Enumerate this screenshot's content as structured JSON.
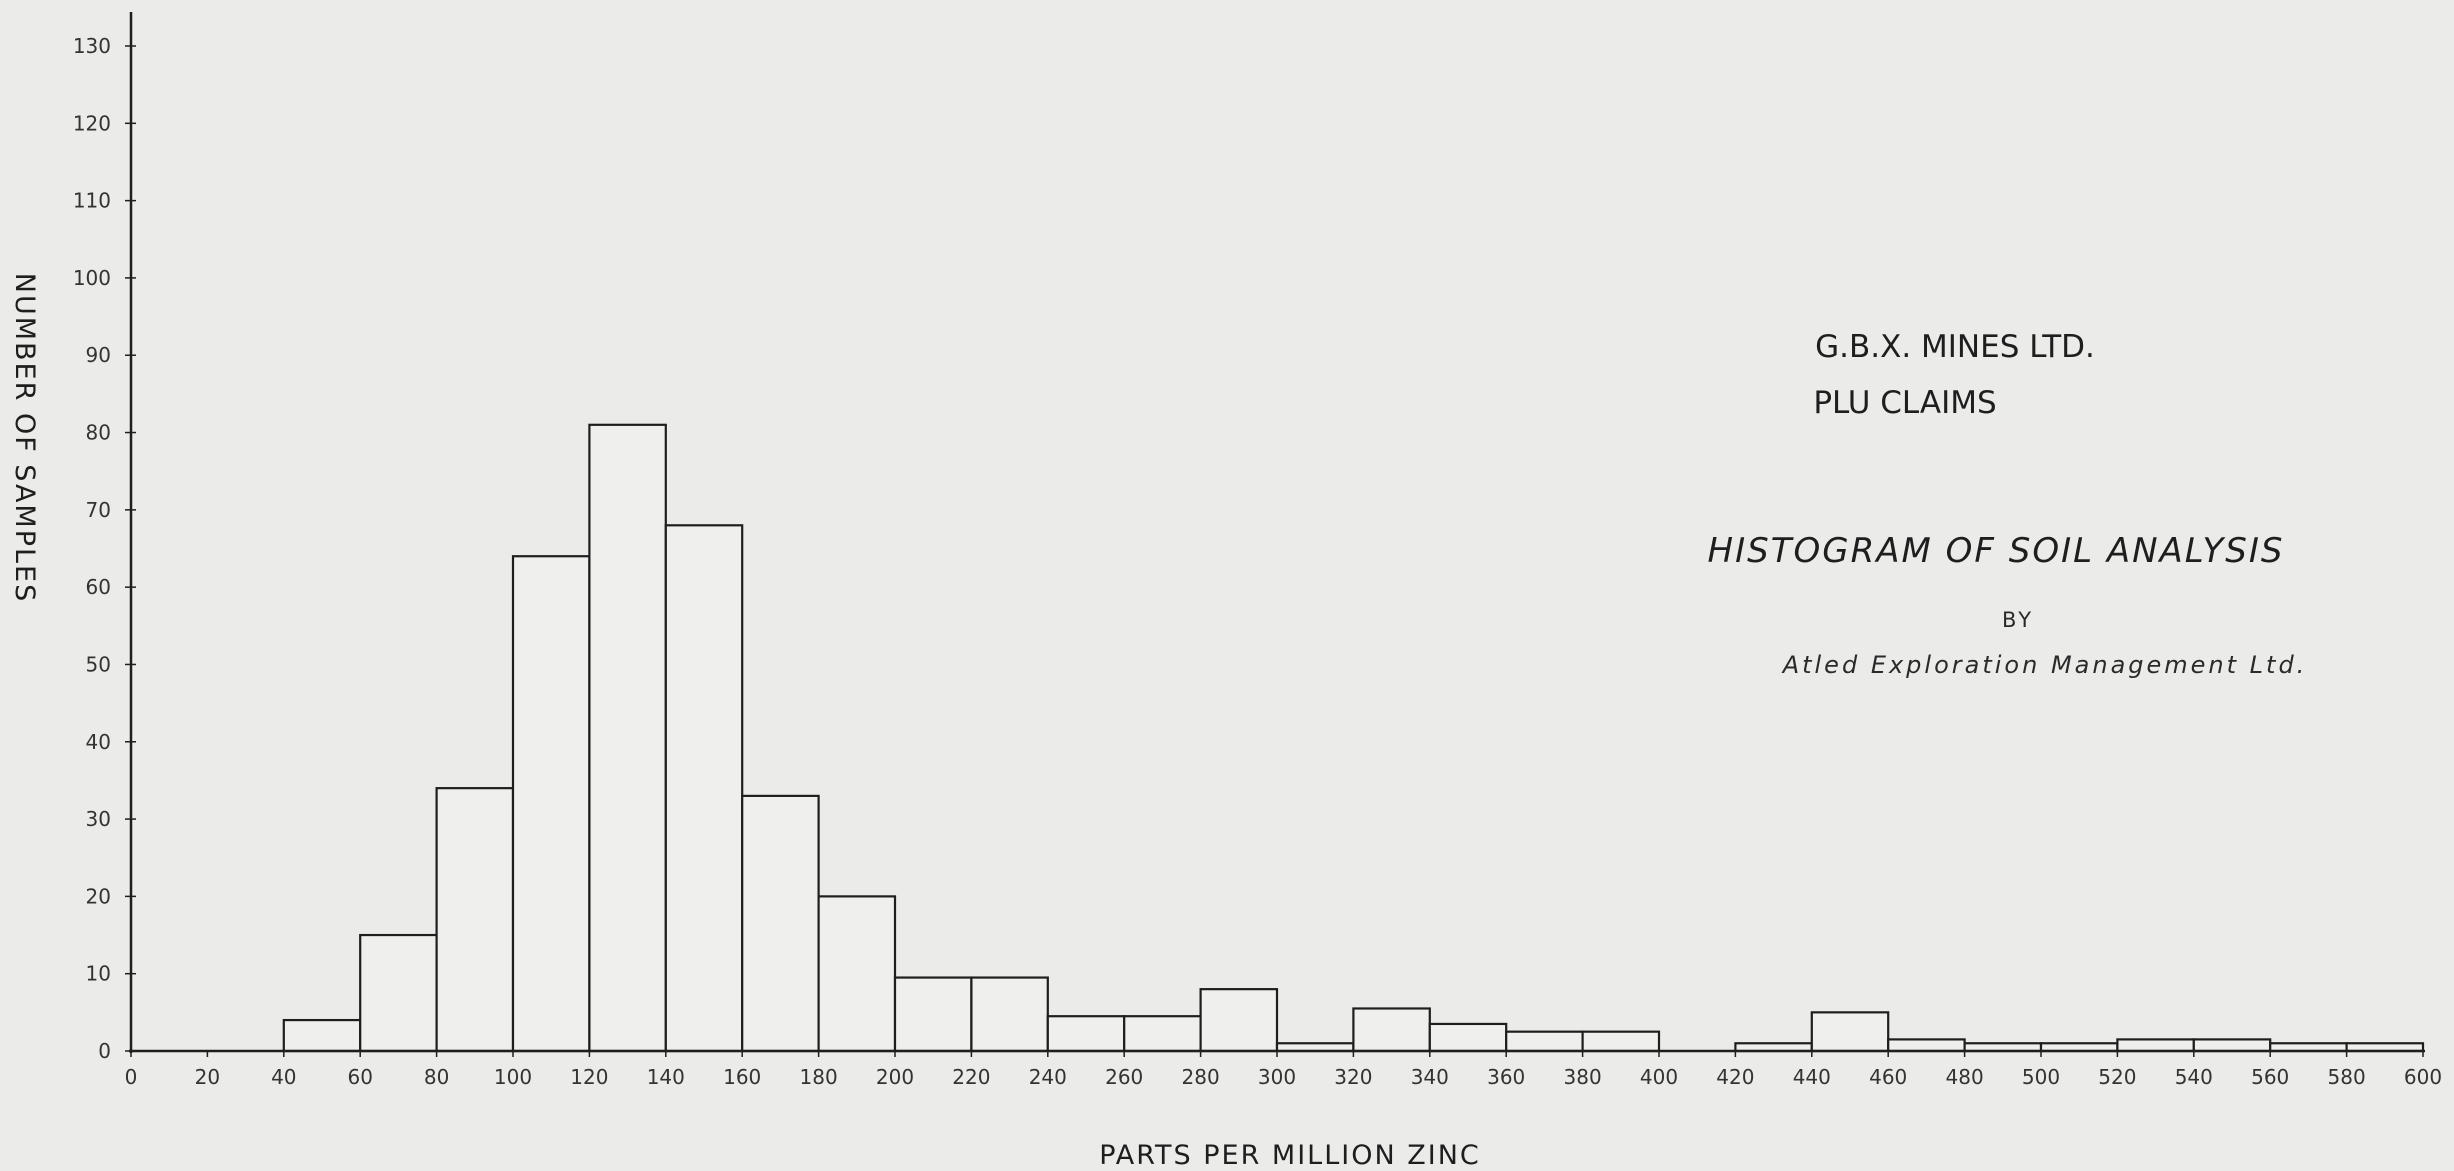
{
  "header": {
    "company": "G.B.X. MINES LTD.",
    "claims": "PLU CLAIMS",
    "histogram_title": "HISTOGRAM OF SOIL ANALYSIS",
    "by": "BY",
    "author": "Atled Exploration Management Ltd."
  },
  "chart_data": {
    "type": "bar",
    "xlabel": "PARTS PER MILLION ZINC",
    "ylabel": "NUMBER OF SAMPLES",
    "xlim": [
      0,
      600
    ],
    "ylim": [
      0,
      130
    ],
    "x_ticks": [
      0,
      20,
      40,
      60,
      80,
      100,
      120,
      140,
      160,
      180,
      200,
      220,
      240,
      260,
      280,
      300,
      320,
      340,
      360,
      380,
      400,
      420,
      440,
      460,
      480,
      500,
      520,
      540,
      560,
      580,
      600
    ],
    "x_tick_labels": [
      "0",
      "20",
      "40",
      "60",
      "80",
      "100",
      "120",
      "140",
      "160",
      "180",
      "200",
      "220",
      "240",
      "260",
      "280",
      "300",
      "320",
      "340",
      "360",
      "380",
      "400",
      "420",
      "440",
      "460",
      "480",
      "500",
      "520",
      "540",
      "560",
      "580",
      "600"
    ],
    "y_ticks": [
      0,
      10,
      20,
      30,
      40,
      50,
      60,
      70,
      80,
      90,
      100,
      110,
      120,
      130
    ],
    "y_tick_labels": [
      "0",
      "10",
      "20",
      "30",
      "40",
      "50",
      "60",
      "70",
      "80",
      "90",
      "100",
      "110",
      "120",
      "130"
    ],
    "grid": false,
    "bins": [
      {
        "from": 40,
        "to": 60,
        "count": 4
      },
      {
        "from": 60,
        "to": 80,
        "count": 15
      },
      {
        "from": 80,
        "to": 100,
        "count": 34
      },
      {
        "from": 100,
        "to": 120,
        "count": 64
      },
      {
        "from": 120,
        "to": 140,
        "count": 81
      },
      {
        "from": 140,
        "to": 160,
        "count": 68
      },
      {
        "from": 160,
        "to": 180,
        "count": 33
      },
      {
        "from": 180,
        "to": 200,
        "count": 20
      },
      {
        "from": 200,
        "to": 220,
        "count": 9.5
      },
      {
        "from": 220,
        "to": 240,
        "count": 9.5
      },
      {
        "from": 240,
        "to": 260,
        "count": 4.5
      },
      {
        "from": 260,
        "to": 280,
        "count": 4.5
      },
      {
        "from": 280,
        "to": 300,
        "count": 8
      },
      {
        "from": 300,
        "to": 320,
        "count": 1
      },
      {
        "from": 320,
        "to": 340,
        "count": 5.5
      },
      {
        "from": 340,
        "to": 360,
        "count": 3.5
      },
      {
        "from": 360,
        "to": 380,
        "count": 2.5
      },
      {
        "from": 380,
        "to": 400,
        "count": 2.5
      },
      {
        "from": 420,
        "to": 440,
        "count": 1
      },
      {
        "from": 440,
        "to": 460,
        "count": 5
      },
      {
        "from": 460,
        "to": 480,
        "count": 1.5
      },
      {
        "from": 480,
        "to": 500,
        "count": 1
      },
      {
        "from": 500,
        "to": 520,
        "count": 1
      },
      {
        "from": 520,
        "to": 540,
        "count": 1.5
      },
      {
        "from": 540,
        "to": 560,
        "count": 1.5
      },
      {
        "from": 560,
        "to": 580,
        "count": 1
      },
      {
        "from": 580,
        "to": 600,
        "count": 1
      }
    ]
  }
}
